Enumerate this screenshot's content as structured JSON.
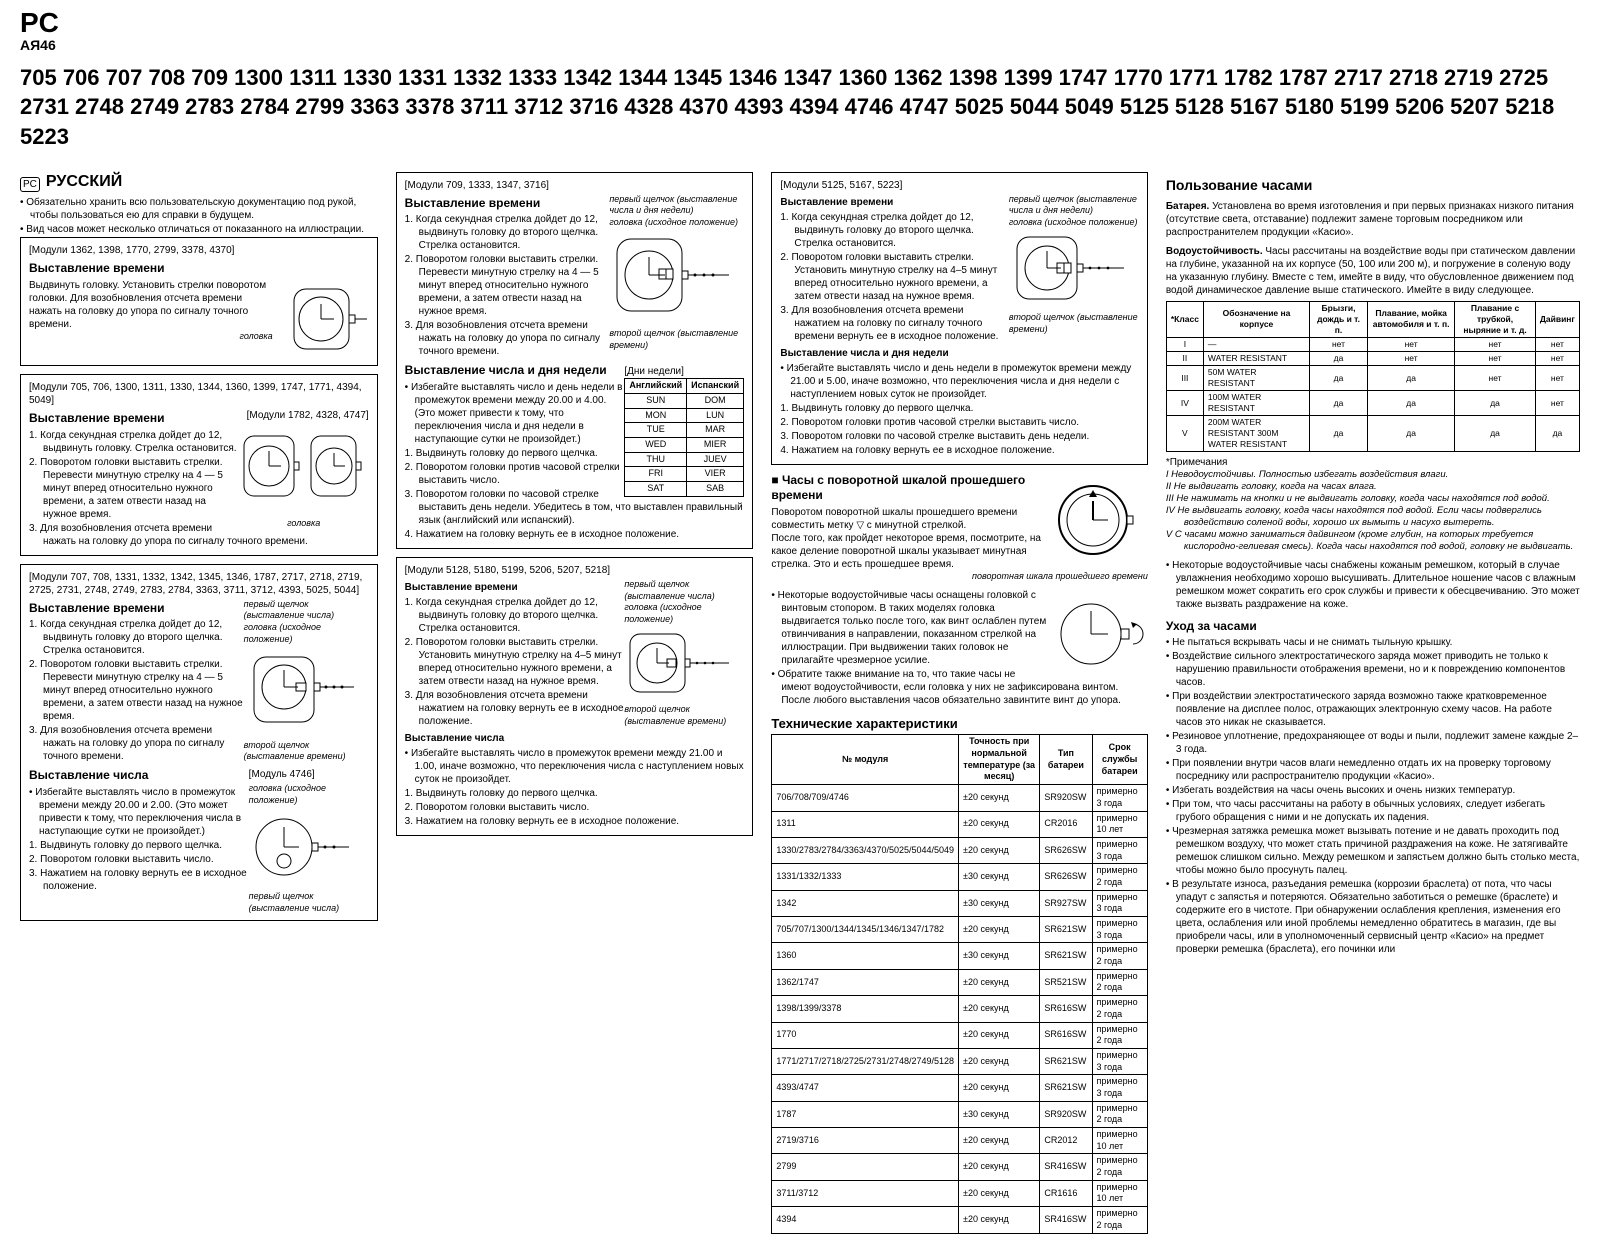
{
  "cert": {
    "logo_top": "PC",
    "logo_sub": "АЯ46"
  },
  "module_numbers": "705 706 707 708 709 1300 1311 1330 1331 1332 1333   1342 1344 1345 1346 1347 1360 1362 1398 1399 1747 1770 1771 1782 1787 2717 2718 2719 2725 2731 2748 2749 2783 2784 2799 3363 3378 3711 3712 3716 4328 4370 4393 4394 4746 4747 5025 5044 5049 5125 5128 5167 5180 5199 5206 5207 5218 5223",
  "col1": {
    "lang": "РУССКИЙ",
    "intro": [
      "Обязательно хранить всю пользовательскую документацию под рукой, чтобы пользоваться ею для справки в будущем.",
      "Вид часов может несколько отличаться от показанного на иллюстрации."
    ],
    "box1": {
      "modules": "[Модули 1362, 1398, 1770, 2799, 3378, 4370]",
      "title": "Выставление времени",
      "text": "Выдвинуть головку. Установить стрелки поворотом головки. Для возобновления отсчета времени нажать на головку до упора по сигналу точного времени.",
      "annot": "головка"
    },
    "box2": {
      "modules": "[Модули 705, 706, 1300, 1311, 1330, 1344, 1360, 1399, 1747, 1771, 4394, 5049]",
      "modules_right": "[Модули 1782, 4328, 4747]",
      "title": "Выставление времени",
      "steps": [
        "1. Когда секундная стрелка дойдет до 12, выдвинуть головку. Стрелка остановится.",
        "2. Поворотом головки выставить стрелки. Перевести минутную стрелку на 4 — 5 минут вперед относительно нужного времени, а затем отвести назад на нужное время.",
        "3. Для возобновления отсчета времени нажать на головку до упора по сигналу точного времени."
      ],
      "annot": "головка"
    },
    "box3": {
      "modules": "[Модули 707, 708, 1331, 1332, 1342, 1345, 1346, 1787, 2717, 2718, 2719, 2725, 2731, 2748, 2749, 2783, 2784, 3363, 3711, 3712, 4393, 5025, 5044]",
      "title1": "Выставление времени",
      "steps1": [
        "1. Когда секундная стрелка дойдет до 12, выдвинуть головку до второго щелчка. Стрелка остановится.",
        "2. Поворотом головки выставить стрелки. Перевести минутную стрелку на 4 — 5 минут вперед относительно нужного времени, а затем отвести назад на нужное время.",
        "3. Для возобновления отсчета времени нажать на головку до упора по сигналу точного времени."
      ],
      "annot1": "первый щелчок (выставление числа)",
      "annot2": "головка (исходное положение)",
      "annot3": "второй щелчок (выставление времени)",
      "title2": "Выставление числа",
      "note2": "Избегайте выставлять число в промежуток времени между 20.00 и 2.00. (Это может привести к тому, что переключения числа в наступающие сутки не произойдет.)",
      "steps2": [
        "1. Выдвинуть головку до первого щелчка.",
        "2. Поворотом головки выставить число.",
        "3. Нажатием на головку вернуть ее в исходное положение."
      ],
      "mod4746": "[Модуль 4746]",
      "annot4746a": "головка (исходное положение)",
      "annot4746b": "первый щелчок (выставление числа)"
    }
  },
  "col2": {
    "box1": {
      "modules": "[Модули 709, 1333, 1347, 3716]",
      "title1": "Выставление времени",
      "steps1": [
        "1. Когда секундная стрелка дойдет до 12, выдвинуть головку до второго щелчка. Стрелка остановится.",
        "2. Поворотом головки выставить стрелки. Перевести минутную стрелку на 4 — 5 минут вперед относительно нужного времени, а затем отвести назад на нужное время.",
        "3. Для возобновления отсчета времени нажать на головку до упора по сигналу точного времени."
      ],
      "annot1": "первый щелчок (выставление числа и дня недели)",
      "annot2": "головка (исходное положение)",
      "annot3": "второй щелчок (выставление времени)",
      "title2": "Выставление числа и дня недели",
      "note2": "Избегайте выставлять число и день недели в промежуток времени между 20.00 и 4.00. (Это может привести к тому, что переключения числа и дня недели в наступающие сутки не произойдет.)",
      "steps2": [
        "1. Выдвинуть головку до первого щелчка.",
        "2. Поворотом головки против часовой стрелки выставить число.",
        "3. Поворотом головки по часовой стрелке выставить день недели. Убедитесь в том, что выставлен правильный язык (английский или испанский).",
        "4. Нажатием на головку вернуть ее в исходное положение."
      ],
      "days_label": "[Дни недели]",
      "days_header": [
        "Английский",
        "Испанский"
      ],
      "days_rows": [
        [
          "SUN",
          "DOM"
        ],
        [
          "MON",
          "LUN"
        ],
        [
          "TUE",
          "MAR"
        ],
        [
          "WED",
          "MIER"
        ],
        [
          "THU",
          "JUEV"
        ],
        [
          "FRI",
          "VIER"
        ],
        [
          "SAT",
          "SAB"
        ]
      ]
    },
    "box2": {
      "modules": "[Модули 5128, 5180, 5199, 5206, 5207, 5218]",
      "title1": "Выставление времени",
      "steps1": [
        "1. Когда секундная стрелка дойдет до 12, выдвинуть головку до второго щелчка. Стрелка остановится.",
        "2. Поворотом головки выставить стрелки. Установить минутную стрелку на 4–5 минут вперед относительно нужного времени, а затем отвести назад на нужное время.",
        "3. Для возобновления отсчета времени нажатием на головку вернуть ее в исходное положение."
      ],
      "annot1": "первый щелчок (выставление числа)",
      "annot2": "головка (исходное положение)",
      "annot3": "второй щелчок (выставление времени)",
      "title2": "Выставление числа",
      "note2": "Избегайте выставлять число в промежуток времени между 21.00 и 1.00, иначе возможно, что переключения числа с наступлением новых суток не произойдет.",
      "steps2": [
        "1. Выдвинуть головку до первого щелчка.",
        "2. Поворотом головки выставить число.",
        "3. Нажатием на головку вернуть ее в исходное положение."
      ]
    }
  },
  "col3": {
    "box1": {
      "modules": "[Модули 5125, 5167, 5223]",
      "title1": "Выставление времени",
      "steps1": [
        "1. Когда секундная стрелка дойдет до 12, выдвинуть головку до второго щелчка. Стрелка остановится.",
        "2. Поворотом головки выставить стрелки. Установить минутную стрелку на 4–5 минут вперед относительно нужного времени, а затем отвести назад на нужное время.",
        "3. Для возобновления отсчета времени нажатием на головку по сигналу точного времени вернуть ее в исходное положение."
      ],
      "annot1": "первый щелчок (выставление числа и дня недели)",
      "annot2": "головка (исходное положение)",
      "annot3": "второй щелчок (выставление времени)",
      "title2": "Выставление числа и дня недели",
      "note2": "Избегайте выставлять число и день недели в промежуток времени между 21.00 и 5.00, иначе возможно, что переключения числа и дня недели с наступлением новых суток не произойдет.",
      "steps2": [
        "1. Выдвинуть головку до первого щелчка.",
        "2. Поворотом головки против часовой стрелки выставить число.",
        "3. Поворотом головки по часовой стрелке выставить день недели.",
        "4. Нажатием на головку вернуть ее в исходное положение."
      ]
    },
    "bezel": {
      "title": "Часы с поворотной шкалой прошедшего времени",
      "text1": "Поворотом поворотной шкалы прошедшего времени совместить метку ▽ с минутной стрелкой.",
      "text2": "После того, как пройдет некоторое время, посмотрите, на какое деление поворотной шкалы указывает минутная стрелка. Это и есть прошедшее время.",
      "annot": "поворотная шкала прошедшего времени"
    },
    "screwdown": [
      "Некоторые водоустойчивые часы оснащены головкой с винтовым стопором. В таких моделях головка выдвигается только после того, как винт ослаблен путем отвинчивания в направлении, показанном стрелкой на иллюстрации. При выдвижении таких головок не прилагайте чрезмерное усилие.",
      "Обратите также внимание на то, что такие часы не имеют водоустойчивости, если головка у них не зафиксирована винтом. После любого выставления часов обязательно завинтите винт до упора."
    ],
    "spec_title": "Технические характеристики",
    "spec_header": [
      "№ модуля",
      "Точность при нормальной температуре (за месяц)",
      "Тип батареи",
      "Срок службы батареи"
    ],
    "spec_rows": [
      [
        "706/708/709/4746",
        "±20 секунд",
        "SR920SW",
        "примерно 3 года"
      ],
      [
        "1311",
        "±20 секунд",
        "CR2016",
        "примерно 10 лет"
      ],
      [
        "1330/2783/2784/3363/4370/5025/5044/5049",
        "±20 секунд",
        "SR626SW",
        "примерно 3 года"
      ],
      [
        "1331/1332/1333",
        "±30 секунд",
        "SR626SW",
        "примерно 2 года"
      ],
      [
        "1342",
        "±30 секунд",
        "SR927SW",
        "примерно 3 года"
      ],
      [
        "705/707/1300/1344/1345/1346/1347/1782",
        "±20 секунд",
        "SR621SW",
        "примерно 3 года"
      ],
      [
        "1360",
        "±30 секунд",
        "SR621SW",
        "примерно 2 года"
      ],
      [
        "1362/1747",
        "±20 секунд",
        "SR521SW",
        "примерно 2 года"
      ],
      [
        "1398/1399/3378",
        "±20 секунд",
        "SR616SW",
        "примерно 2 года"
      ],
      [
        "1770",
        "±20 секунд",
        "SR616SW",
        "примерно 2 года"
      ],
      [
        "1771/2717/2718/2725/2731/2748/2749/5128",
        "±20 секунд",
        "SR621SW",
        "примерно 3 года"
      ],
      [
        "4393/4747",
        "±20 секунд",
        "SR621SW",
        "примерно 3 года"
      ],
      [
        "1787",
        "±30 секунд",
        "SR920SW",
        "примерно 2 года"
      ],
      [
        "2719/3716",
        "±20 секунд",
        "CR2012",
        "примерно 10 лет"
      ],
      [
        "2799",
        "±20 секунд",
        "SR416SW",
        "примерно 2 года"
      ],
      [
        "3711/3712",
        "±20 секунд",
        "CR1616",
        "примерно 10 лет"
      ],
      [
        "4394",
        "±20 секунд",
        "SR416SW",
        "примерно 2 года"
      ]
    ]
  },
  "col4": {
    "title": "Пользование часами",
    "battery_title": "Батарея.",
    "battery_text": "Установлена во время изготовления и при первых признаках низкого питания (отсутствие света, отставание) подлежит замене торговым посредником или распространителем продукции «Касио».",
    "wr_title": "Водоустойчивость.",
    "wr_text": "Часы рассчитаны на воздействие воды при статическом давлении на глубине, указанной на их корпусе (50, 100 или 200 м), и погружение в соленую воду на указанную глубину. Вместе с тем, имейте в виду, что обусловленное движением под водой динамическое давление выше статического. Имейте в виду следующее.",
    "wr_header": [
      "*Класс",
      "Обозначение на корпусе",
      "Брызги, дождь и т. п.",
      "Плавание, мойка автомобиля и т. п.",
      "Плавание с трубкой, ныряние и т. д.",
      "Дайвинг"
    ],
    "wr_rows": [
      [
        "I",
        "—",
        "нет",
        "нет",
        "нет",
        "нет"
      ],
      [
        "II",
        "WATER RESISTANT",
        "да",
        "нет",
        "нет",
        "нет"
      ],
      [
        "III",
        "50M WATER RESISTANT",
        "да",
        "да",
        "нет",
        "нет"
      ],
      [
        "IV",
        "100M WATER RESISTANT",
        "да",
        "да",
        "да",
        "нет"
      ],
      [
        "V",
        "200M WATER RESISTANT 300M WATER RESISTANT",
        "да",
        "да",
        "да",
        "да"
      ]
    ],
    "footnote_label": "*Примечания",
    "footnotes": [
      "I   Неводоустойчивы. Полностью избегать воздействия влаги.",
      "II  Не выдвигать головку, когда на часах влага.",
      "III Не нажимать на кнопки и не выдвигать головку, когда часы находятся под водой.",
      "IV Не выдвигать головку, когда часы находятся под водой. Если часы подверглись воздействию соленой воды, хорошо их вымыть и насухо вытереть.",
      "V  С часами можно заниматься дайвингом (кроме глубин, на которых требуется кислородно-гелиевая смесь). Когда часы находятся под водой, головку не выдвигать."
    ],
    "leather": [
      "Некоторые водоустойчивые часы снабжены кожаным ремешком, который в случае увлажнения необходимо хорошо высушивать. Длительное ношение часов с влажным ремешком может сократить его срок службы и привести к обесцвечиванию. Это может также вызвать раздражение на коже."
    ],
    "care_title": "Уход за часами",
    "care": [
      "Не пытаться вскрывать часы и не снимать тыльную крышку.",
      "Воздействие сильного электростатического заряда может приводить не только к нарушению правильности отображения времени, но и к повреждению компонентов часов.",
      "При воздействии электростатического заряда возможно также кратковременное появление на дисплее полос, отражающих электронную схему часов. На работе часов это никак не сказывается.",
      "Резиновое уплотнение, предохраняющее от воды и пыли, подлежит замене каждые 2–3 года.",
      "При появлении внутри часов влаги немедленно отдать их на проверку торговому посреднику или распространителю продукции «Касио».",
      "Избегать воздействия на часы очень высоких и очень низких температур.",
      "При том, что часы рассчитаны на работу в обычных условиях, следует избегать грубого обращения с ними и не допускать их падения.",
      "Чрезмерная затяжка ремешка может вызывать потение и не давать проходить под ремешком воздуху, что может стать причиной раздражения на коже. Не затягивайте ремешок слишком сильно. Между ремешком и запястьем должно быть столько места, чтобы можно было просунуть палец.",
      "В результате износа, разъедания ремешка (коррозии браслета) от пота, что часы упадут с запястья и потеряются. Обязательно заботиться о ремешке (браслете) и содержите его в чистоте. При обнаружении ослабления крепления, изменения его цвета, ослабления или иной проблемы немедленно обратитесь в магазин, где вы приобрели часы, или в уполномоченный сервисный центр «Касио» на предмет проверки ремешка (браслета), его починки или"
    ]
  }
}
